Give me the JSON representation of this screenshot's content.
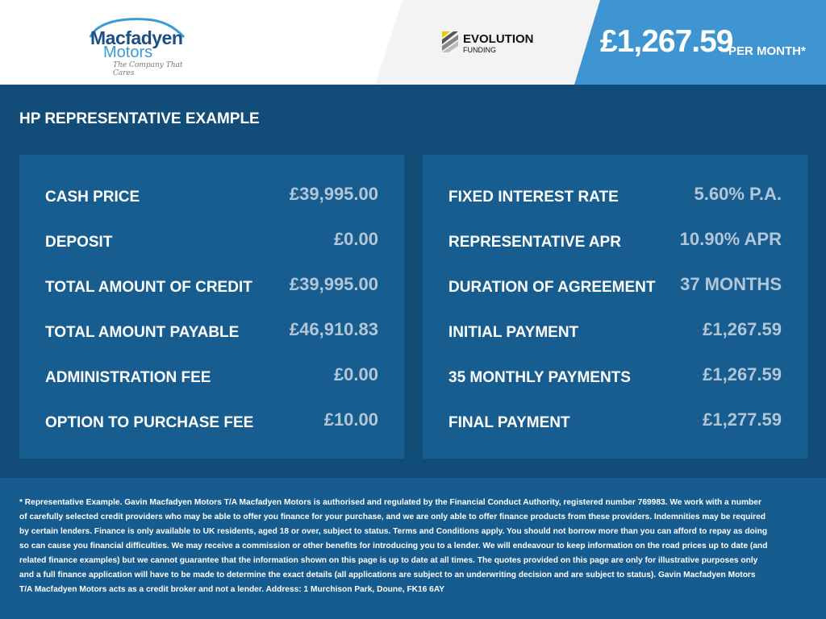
{
  "header": {
    "dealer_logo": {
      "line1": "Macfadyen",
      "line2": "Motors",
      "tagline": "The Company That Cares"
    },
    "funder_logo": {
      "line1": "EVOLUTION",
      "line2": "FUNDING"
    },
    "monthly_price": "£1,267.59",
    "per_month": "PER MONTH*"
  },
  "title": "HP REPRESENTATIVE EXAMPLE",
  "left_panel": [
    {
      "label": "CASH PRICE",
      "value": "£39,995.00"
    },
    {
      "label": "DEPOSIT",
      "value": "£0.00"
    },
    {
      "label": "TOTAL AMOUNT OF CREDIT",
      "value": "£39,995.00"
    },
    {
      "label": "TOTAL AMOUNT PAYABLE",
      "value": "£46,910.83"
    },
    {
      "label": "ADMINISTRATION FEE",
      "value": "£0.00"
    },
    {
      "label": "OPTION TO PURCHASE FEE",
      "value": "£10.00"
    }
  ],
  "right_panel": [
    {
      "label": "FIXED INTEREST RATE",
      "value": "5.60% P.A."
    },
    {
      "label": "REPRESENTATIVE APR",
      "value": "10.90% APR"
    },
    {
      "label": "DURATION OF AGREEMENT",
      "value": "37 MONTHS"
    },
    {
      "label": "INITIAL PAYMENT",
      "value": "£1,267.59"
    },
    {
      "label": "35 MONTHLY PAYMENTS",
      "value": "£1,267.59"
    },
    {
      "label": "FINAL PAYMENT",
      "value": "£1,277.59"
    }
  ],
  "footer": "* Representative Example. Gavin Macfadyen Motors T/A Macfadyen Motors is authorised and regulated by the Financial Conduct Authority, registered number 769983. We work with a number of carefully selected credit providers who may be able to offer you finance for your purchase, and we are only able to offer finance products from these providers. Indemnities may be required by certain lenders. Finance is only available to UK residents, aged 18 or over, subject to status. Terms and Conditions apply. You should not borrow more than you can afford to repay as doing so can cause you financial difficulties. We may receive a commission or other benefits for introducing you to a lender. We will endeavour to keep information on the road prices up to date (and related finance examples) but we cannot guarantee that the information shown on this page is up to date at all times. The quotes provided on this page are only for illustrative purposes only and a full finance application will have to be made to determine the exact details (all applications are subject to an underwriting decision and are subject to status). Gavin Macfadyen Motors T/A Macfadyen Motors acts as a credit broker and not a lender. Address: 1 Murchison Park, Doune, FK16 6AY",
  "colors": {
    "header_accent": "#3f95d1",
    "background": "#124c78",
    "panel": "#175d90",
    "value_text": "#b3c6d8"
  }
}
